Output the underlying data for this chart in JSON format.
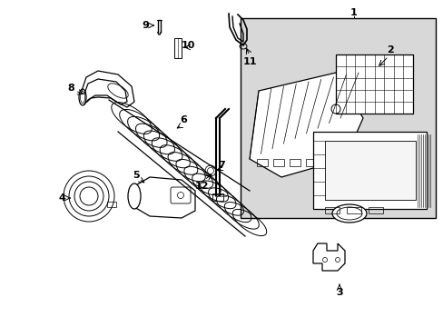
{
  "bg_color": "#ffffff",
  "box_bg": "#dcdcdc",
  "line_color": "#000000",
  "label_fontsize": 8,
  "fig_width": 4.89,
  "fig_height": 3.6,
  "dpi": 100
}
